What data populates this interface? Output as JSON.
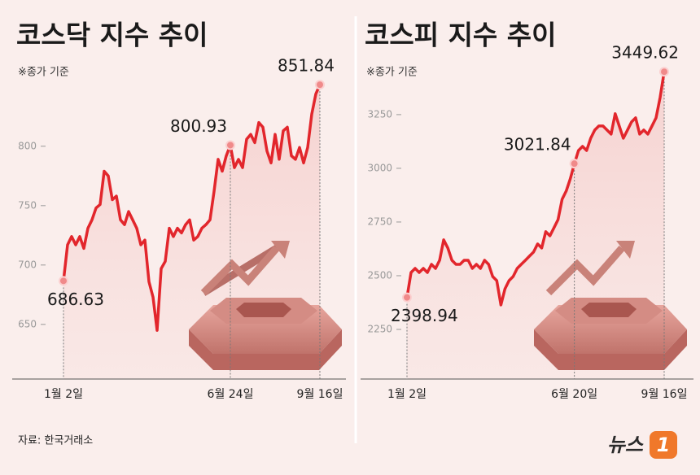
{
  "chart_data": [
    {
      "type": "line",
      "title": "코스닥 지수 추이",
      "subtitle": "※종가 기준",
      "color": "#e2262c",
      "categories": [
        "1월 2일",
        null,
        null,
        null,
        null,
        null,
        null,
        null,
        null,
        null,
        null,
        null,
        null,
        null,
        null,
        null,
        null,
        null,
        null,
        null,
        null,
        null,
        null,
        null,
        null,
        null,
        null,
        null,
        null,
        null,
        null,
        null,
        null,
        null,
        null,
        null,
        null,
        null,
        null,
        null,
        null,
        "6월 24일",
        null,
        null,
        null,
        null,
        null,
        null,
        null,
        null,
        null,
        null,
        null,
        null,
        null,
        null,
        null,
        null,
        null,
        null,
        null,
        null,
        null,
        "9월 16일"
      ],
      "values": [
        686.63,
        717,
        724,
        717,
        724,
        714,
        731,
        738,
        748,
        751,
        779,
        775,
        755,
        758,
        738,
        734,
        745,
        738,
        731,
        717,
        721,
        686,
        673,
        645,
        697,
        703,
        731,
        724,
        731,
        727,
        734,
        738,
        721,
        724,
        731,
        734,
        738,
        762,
        789,
        779,
        792,
        800.93,
        782,
        789,
        782,
        806,
        810,
        803,
        820,
        816,
        796,
        786,
        810,
        789,
        813,
        816,
        792,
        789,
        799,
        786,
        799,
        827,
        844,
        851.84
      ],
      "ylim": [
        604,
        880
      ],
      "yticks": [
        650,
        700,
        750,
        800
      ]
    },
    {
      "type": "line",
      "title": "코스피 지수 추이",
      "subtitle": "※종가 기준",
      "color": "#e2262c",
      "categories": [
        "1월 2일",
        null,
        null,
        null,
        null,
        null,
        null,
        null,
        null,
        null,
        null,
        null,
        null,
        null,
        null,
        null,
        null,
        null,
        null,
        null,
        null,
        null,
        null,
        null,
        null,
        null,
        null,
        null,
        null,
        null,
        null,
        null,
        null,
        null,
        null,
        null,
        null,
        null,
        null,
        null,
        null,
        "6월 20일",
        null,
        null,
        null,
        null,
        null,
        null,
        null,
        null,
        null,
        null,
        null,
        null,
        null,
        null,
        null,
        null,
        null,
        null,
        null,
        null,
        null,
        "9월 16일"
      ],
      "values": [
        2398.94,
        2515,
        2534,
        2515,
        2534,
        2515,
        2553,
        2534,
        2572,
        2667,
        2629,
        2572,
        2553,
        2553,
        2572,
        2572,
        2534,
        2553,
        2534,
        2572,
        2553,
        2496,
        2477,
        2364,
        2439,
        2477,
        2496,
        2534,
        2553,
        2572,
        2591,
        2610,
        2648,
        2629,
        2705,
        2686,
        2723,
        2761,
        2856,
        2894,
        2951,
        3021.84,
        3083,
        3102,
        3083,
        3140,
        3178,
        3197,
        3197,
        3178,
        3159,
        3254,
        3197,
        3140,
        3178,
        3216,
        3235,
        3159,
        3178,
        3159,
        3197,
        3235,
        3330,
        3449.62
      ],
      "ylim": [
        2019,
        3545
      ],
      "yticks": [
        2250,
        2500,
        2750,
        3000,
        3250
      ]
    }
  ],
  "source": "자료: 한국거래소",
  "logo": [
    "뉴스",
    "1"
  ]
}
